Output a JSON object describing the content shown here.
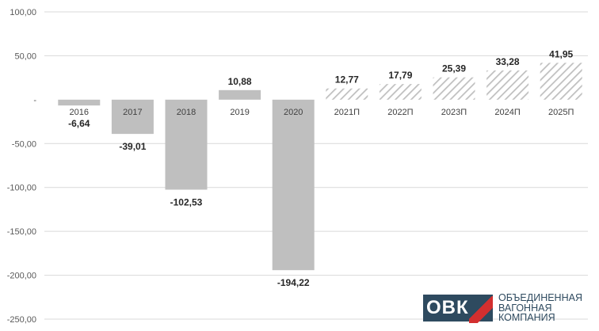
{
  "chart_data": {
    "type": "bar",
    "categories": [
      "2016",
      "2017",
      "2018",
      "2019",
      "2020",
      "2021П",
      "2022П",
      "2023П",
      "2024П",
      "2025П"
    ],
    "values": [
      -6.64,
      -39.01,
      -102.53,
      10.88,
      -194.22,
      12.77,
      17.79,
      25.39,
      33.28,
      41.95
    ],
    "value_labels": [
      "-6,64",
      "-39,01",
      "-102,53",
      "10,88",
      "-194,22",
      "12,77",
      "17,79",
      "25,39",
      "33,28",
      "41,95"
    ],
    "forecast": [
      false,
      false,
      false,
      false,
      false,
      true,
      true,
      true,
      true,
      true
    ],
    "yticks": [
      100,
      50,
      0,
      -50,
      -100,
      -150,
      -200,
      -250
    ],
    "ytick_labels": [
      "100,00",
      "50,00",
      "-",
      "-50,00",
      "-100,00",
      "-150,00",
      "-200,00",
      "-250,00"
    ],
    "ylim": [
      -250,
      100
    ],
    "grid": true,
    "colors": {
      "actual": "#bfbfbf",
      "forecast_stripe": "#bfbfbf",
      "grid": "#d9d9d9"
    }
  },
  "logo": {
    "mark": "ОВК",
    "name_lines": [
      "ОБЪЕДИНЕННАЯ",
      "ВАГОННАЯ",
      "КОМПАНИЯ"
    ]
  }
}
